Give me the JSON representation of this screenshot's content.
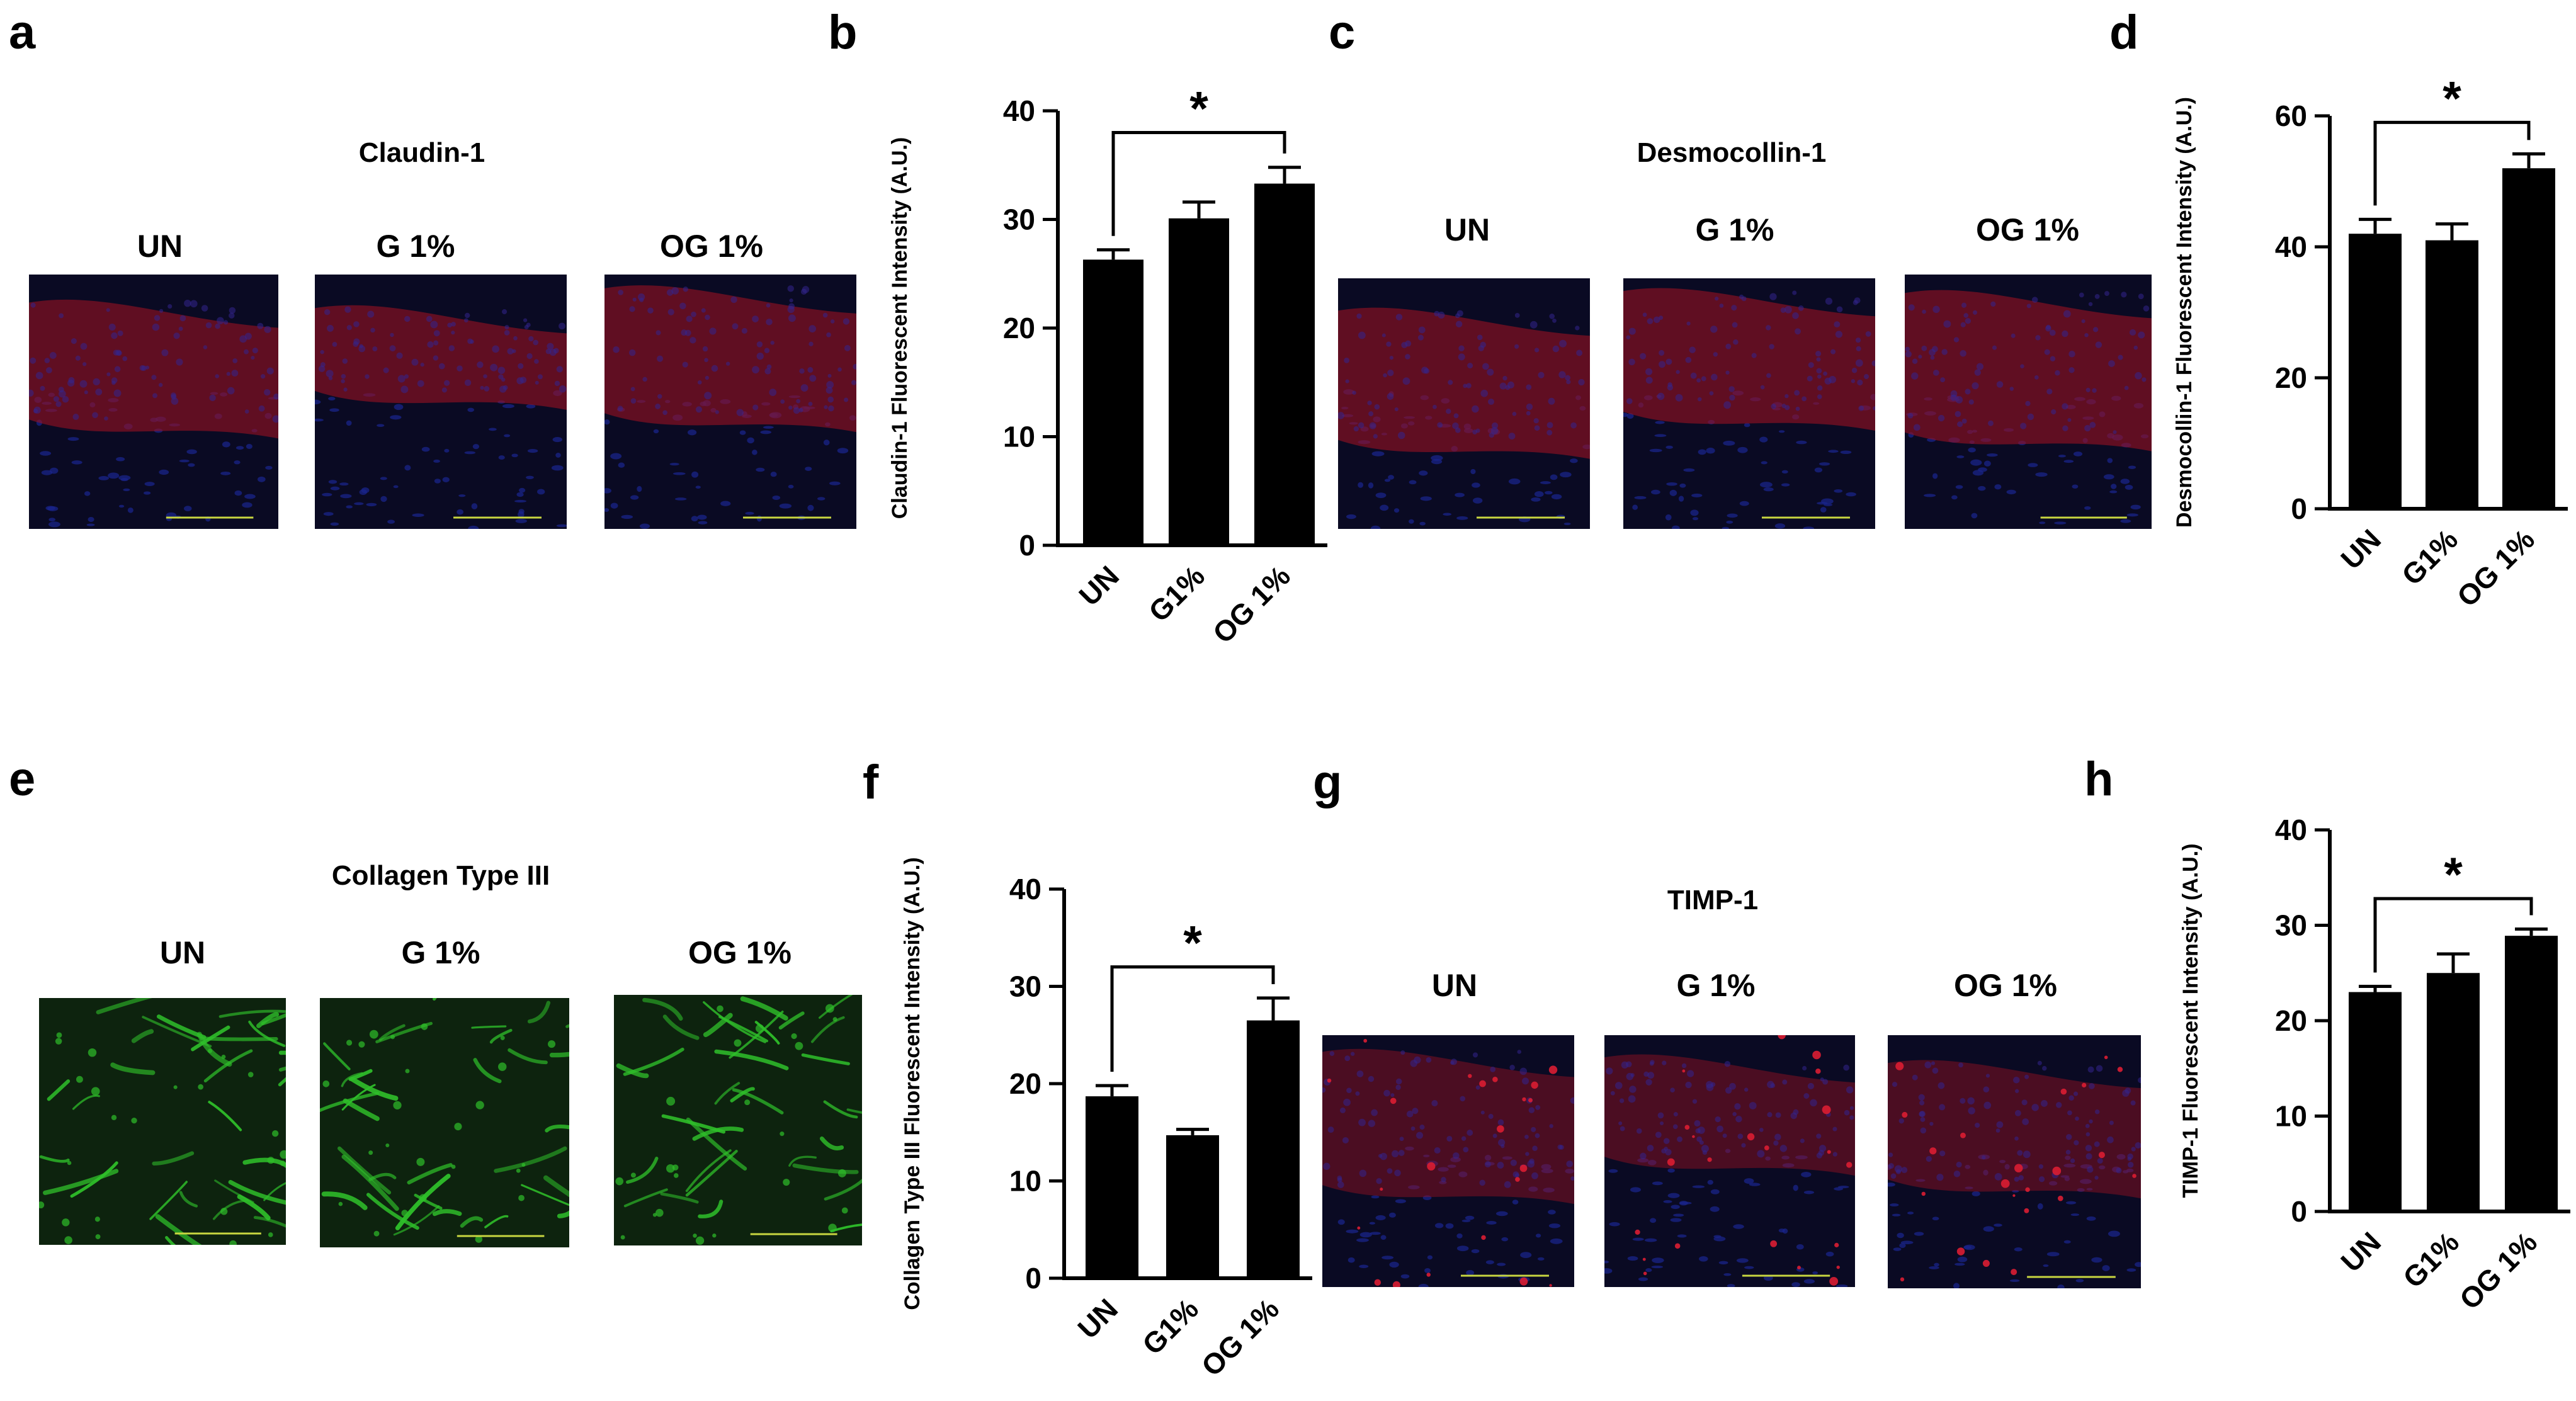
{
  "panels": [
    {
      "letter": "a",
      "title": "Claudin-1",
      "stain": "red"
    },
    {
      "letter": "b"
    },
    {
      "letter": "c",
      "title": "Desmocollin-1",
      "stain": "red"
    },
    {
      "letter": "d"
    },
    {
      "letter": "e",
      "title": "Collagen Type III",
      "stain": "green"
    },
    {
      "letter": "f"
    },
    {
      "letter": "g",
      "title": "TIMP-1",
      "stain": "red-dots"
    },
    {
      "letter": "h"
    }
  ],
  "image_conditions": [
    "UN",
    "G 1%",
    "OG 1%"
  ],
  "colors": {
    "red_stain": "#b3121d",
    "blue_nuclei": "#1c2a9c",
    "green_stain": "#2fbf2a",
    "scale_bar": "#c8d640",
    "bar_fill": "#000000"
  },
  "significance_marker": "*",
  "chart_data": [
    {
      "panel": "b",
      "type": "bar",
      "categories": [
        "UN",
        "G1%",
        "OG 1%"
      ],
      "values": [
        26.3,
        30.1,
        33.3
      ],
      "errors": [
        0.9,
        1.5,
        1.5
      ],
      "ylabel": "Claudin-1 Fluorescent Intensity (A.U.)",
      "ylim": [
        0,
        40
      ],
      "yticks": [
        0,
        10,
        20,
        30,
        40
      ],
      "significance": {
        "from": "UN",
        "to": "OG 1%",
        "label": "*"
      }
    },
    {
      "panel": "d",
      "type": "bar",
      "categories": [
        "UN",
        "G1%",
        "OG 1%"
      ],
      "values": [
        42,
        41,
        52
      ],
      "errors": [
        2.2,
        2.5,
        2.2
      ],
      "ylabel": "Desmocollin-1 Fluorescent Intensity (A.U.)",
      "ylim": [
        0,
        60
      ],
      "yticks": [
        0,
        20,
        40,
        60
      ],
      "significance": {
        "from": "UN",
        "to": "OG 1%",
        "label": "*"
      }
    },
    {
      "panel": "f",
      "type": "bar",
      "categories": [
        "UN",
        "G1%",
        "OG 1%"
      ],
      "values": [
        18.7,
        14.7,
        26.5
      ],
      "errors": [
        1.1,
        0.6,
        2.3
      ],
      "ylabel": "Collagen Type III Fluorescent Intensity (A.U.)",
      "ylim": [
        0,
        40
      ],
      "yticks": [
        0,
        10,
        20,
        30,
        40
      ],
      "significance": {
        "from": "UN",
        "to": "OG 1%",
        "label": "*"
      }
    },
    {
      "panel": "h",
      "type": "bar",
      "categories": [
        "UN",
        "G1%",
        "OG 1%"
      ],
      "values": [
        23,
        25,
        28.9
      ],
      "errors": [
        0.6,
        2.0,
        0.7
      ],
      "ylabel": "TIMP-1 Fluorescent Intensity (A.U.)",
      "ylim": [
        0,
        40
      ],
      "yticks": [
        0,
        10,
        20,
        30,
        40
      ],
      "significance": {
        "from": "UN",
        "to": "OG 1%",
        "label": "*"
      }
    }
  ]
}
